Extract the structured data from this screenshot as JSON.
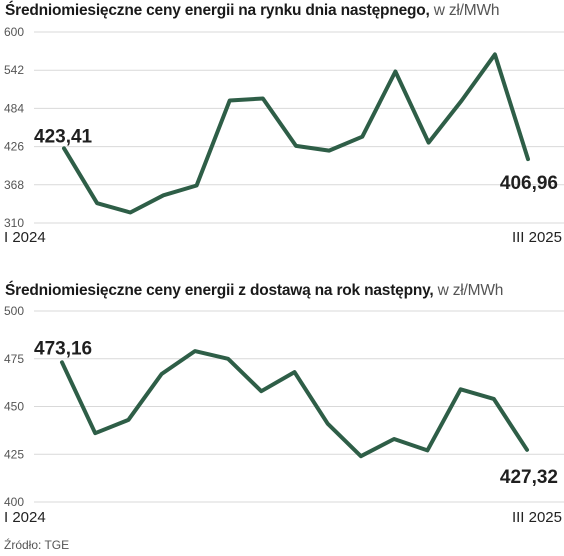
{
  "charts": [
    {
      "title_bold": "Średniomiesięczne ceny energii na rynku dnia następnego,",
      "title_unit": " w zł/MWh"
    },
    {
      "title_bold": "Średniomiesięczne ceny energii z dostawą na rok następny,",
      "title_unit": " w zł/MWh"
    }
  ],
  "source": "Źródło: TGE",
  "colors": {
    "line": "#2e5e47",
    "grid": "#d9d9d9"
  },
  "chart_data": [
    {
      "type": "line",
      "title": "Średniomiesięczne ceny energii na rynku dnia następnego, w zł/MWh",
      "x_start_label": "I 2024",
      "x_end_label": "III 2025",
      "yticks": [
        "600",
        "542",
        "484",
        "426",
        "368",
        "310"
      ],
      "ylim": [
        310,
        600
      ],
      "grid": true,
      "values": [
        423.41,
        340,
        326,
        352,
        367,
        496,
        499,
        427,
        420,
        441,
        540,
        432,
        496,
        566,
        406.96
      ],
      "first_label": "423,41",
      "last_label": "406,96"
    },
    {
      "type": "line",
      "title": "Średniomiesięczne ceny energii z dostawą na rok następny, w zł/MWh",
      "x_start_label": "I 2024",
      "x_end_label": "III 2025",
      "yticks": [
        "500",
        "475",
        "450",
        "425",
        "400"
      ],
      "ylim": [
        400,
        500
      ],
      "grid": true,
      "values": [
        473.16,
        436,
        443,
        467,
        479,
        475,
        458,
        468,
        441,
        424,
        433,
        427,
        459,
        454,
        427.32
      ],
      "first_label": "473,16",
      "last_label": "427,32"
    }
  ]
}
